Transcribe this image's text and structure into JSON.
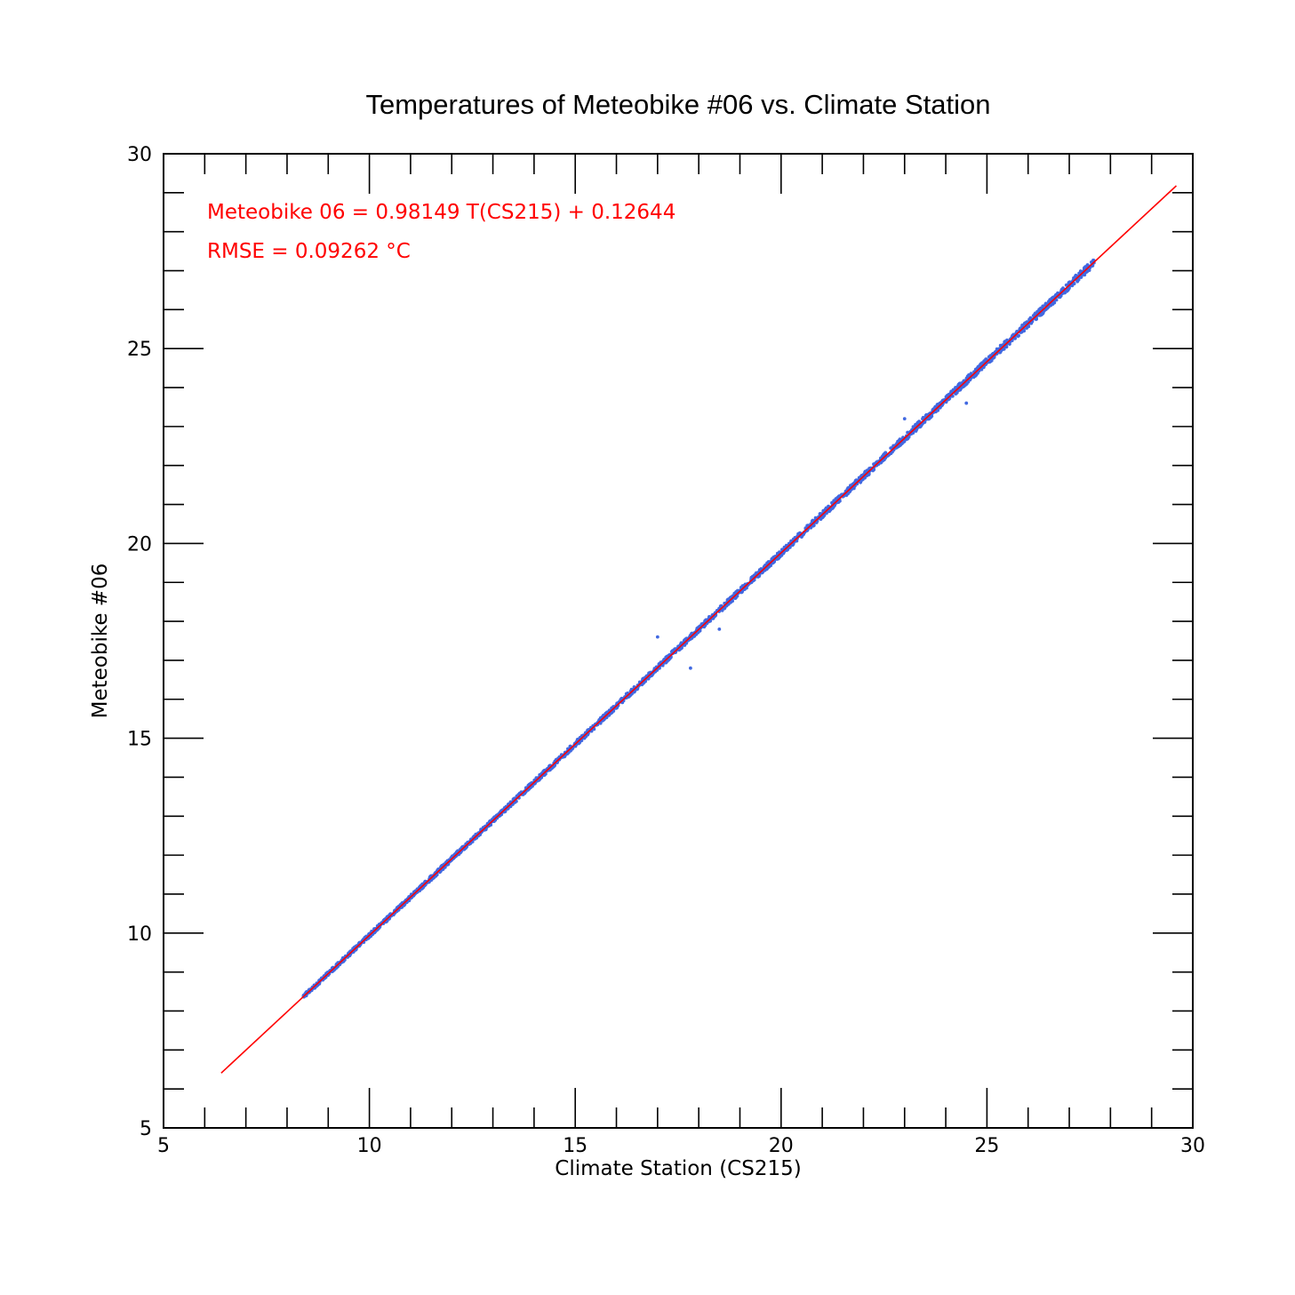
{
  "chart_data": {
    "type": "scatter",
    "title": "Temperatures of Meteobike #06 vs. Climate Station",
    "xlabel": "Climate Station (CS215)",
    "ylabel": "Meteobike #06",
    "xlim": [
      5,
      30
    ],
    "ylim": [
      5,
      30
    ],
    "x_major_ticks": [
      5,
      10,
      15,
      20,
      25,
      30
    ],
    "x_tick_labels": [
      "5",
      "10",
      "15",
      "20",
      "25",
      "30"
    ],
    "y_major_ticks": [
      5,
      10,
      15,
      20,
      25,
      30
    ],
    "y_tick_labels": [
      "5",
      "10",
      "15",
      "20",
      "25",
      "30"
    ],
    "minor_tick_step": 1,
    "grid": false,
    "legend": "none",
    "colors": {
      "points": "#4169e1",
      "fit_line": "#ff0000",
      "annotation": "#ff0000"
    },
    "annotations": [
      "Meteobike 06 = 0.98149 T(CS215) + 0.12644",
      "RMSE = 0.09262 °C"
    ],
    "fit_line": {
      "slope": 0.98149,
      "intercept": 0.12644,
      "x_range": [
        6.4,
        29.6
      ]
    },
    "series": [
      {
        "kind": "scatter",
        "x_range": [
          8.4,
          27.6
        ],
        "points": [
          [
            8.4,
            8.4
          ],
          [
            8.8,
            8.8
          ],
          [
            9.2,
            9.2
          ],
          [
            9.6,
            9.6
          ],
          [
            10.0,
            9.95
          ],
          [
            10.5,
            10.45
          ],
          [
            11.0,
            10.95
          ],
          [
            11.5,
            11.4
          ],
          [
            12.0,
            11.9
          ],
          [
            12.5,
            12.4
          ],
          [
            13.0,
            12.9
          ],
          [
            13.5,
            13.4
          ],
          [
            14.0,
            13.85
          ],
          [
            14.5,
            14.35
          ],
          [
            15.0,
            14.85
          ],
          [
            15.5,
            15.35
          ],
          [
            16.0,
            15.85
          ],
          [
            16.5,
            16.3
          ],
          [
            17.0,
            16.8
          ],
          [
            17.5,
            17.3
          ],
          [
            18.0,
            17.8
          ],
          [
            18.5,
            18.3
          ],
          [
            19.0,
            18.75
          ],
          [
            19.5,
            19.25
          ],
          [
            20.0,
            19.75
          ],
          [
            20.5,
            20.25
          ],
          [
            21.0,
            20.75
          ],
          [
            21.5,
            21.2
          ],
          [
            22.0,
            21.7
          ],
          [
            22.5,
            22.2
          ],
          [
            23.0,
            22.7
          ],
          [
            23.5,
            23.2
          ],
          [
            24.0,
            23.7
          ],
          [
            24.5,
            24.15
          ],
          [
            25.0,
            24.65
          ],
          [
            25.5,
            25.15
          ],
          [
            26.0,
            25.65
          ],
          [
            26.5,
            26.15
          ],
          [
            27.0,
            26.6
          ],
          [
            27.6,
            27.2
          ],
          [
            17.0,
            17.6
          ],
          [
            24.5,
            23.6
          ],
          [
            17.8,
            16.8
          ],
          [
            18.5,
            17.8
          ],
          [
            23.0,
            23.2
          ]
        ]
      }
    ]
  }
}
